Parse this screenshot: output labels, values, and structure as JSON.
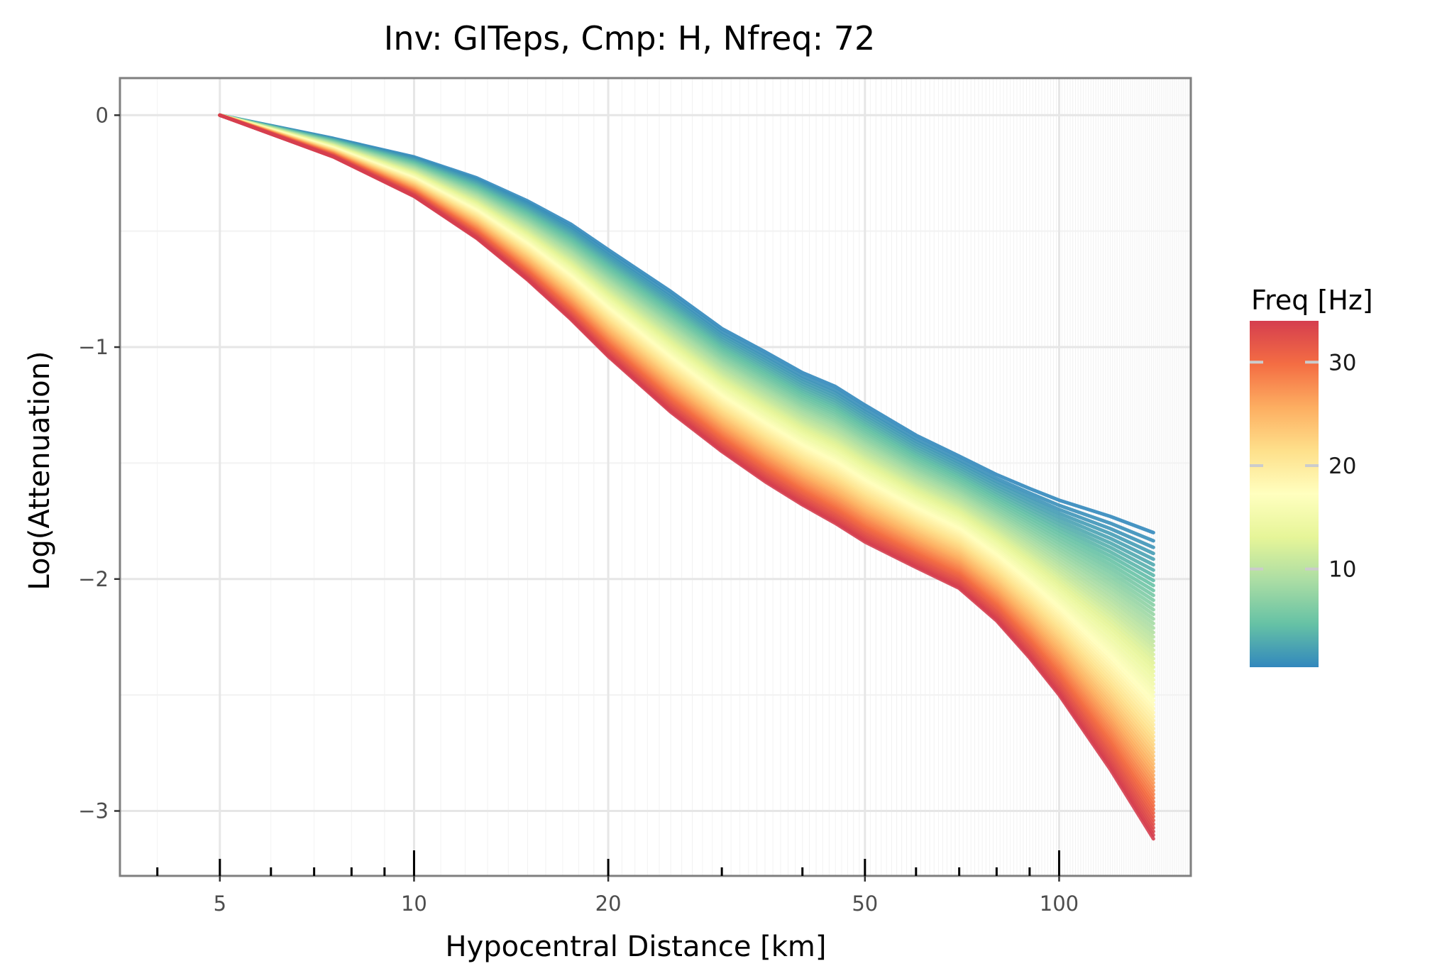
{
  "chart_data": {
    "type": "line",
    "title": "Inv: GITeps, Cmp: H, Nfreq: 72",
    "xlabel": "Hypocentral Distance [km]",
    "ylabel": "Log(Attenuation)",
    "x_scale": "log",
    "xlim": [
      3.5,
      160
    ],
    "ylim": [
      -3.28,
      0.16
    ],
    "x_ticks": [
      5,
      10,
      20,
      50,
      100
    ],
    "x_tick_labels": [
      "5",
      "10",
      "20",
      "50",
      "100"
    ],
    "y_ticks": [
      0,
      -1,
      -2,
      -3
    ],
    "y_tick_labels": [
      "0",
      "−1",
      "−2",
      "−3"
    ],
    "grid": true,
    "n_series": 72,
    "x": [
      5,
      7.5,
      10,
      12.5,
      15,
      17.5,
      20,
      25,
      30,
      35,
      40,
      45,
      50,
      60,
      70,
      80,
      90,
      100,
      120,
      140
    ],
    "series_low_freq": {
      "freq": 0.5,
      "values": [
        0,
        -0.1,
        -0.18,
        -0.27,
        -0.37,
        -0.47,
        -0.58,
        -0.76,
        -0.92,
        -1.02,
        -1.11,
        -1.17,
        -1.25,
        -1.38,
        -1.47,
        -1.55,
        -1.61,
        -1.66,
        -1.73,
        -1.8
      ]
    },
    "series_high_freq": {
      "freq": 34,
      "values": [
        0,
        -0.18,
        -0.35,
        -0.53,
        -0.71,
        -0.88,
        -1.04,
        -1.28,
        -1.45,
        -1.58,
        -1.68,
        -1.76,
        -1.84,
        -1.95,
        -2.04,
        -2.18,
        -2.34,
        -2.5,
        -2.82,
        -3.12
      ]
    },
    "legend": {
      "title": "Freq  [Hz]",
      "placement": "right",
      "min": 0.5,
      "max": 34,
      "ticks": [
        10,
        20,
        30
      ],
      "tick_labels": [
        "10",
        "20",
        "30"
      ],
      "colors": [
        "#3288bd",
        "#66c2a5",
        "#abdda4",
        "#e6f598",
        "#ffffbf",
        "#fee08b",
        "#fdae61",
        "#f46d43",
        "#d53e4f"
      ]
    }
  }
}
